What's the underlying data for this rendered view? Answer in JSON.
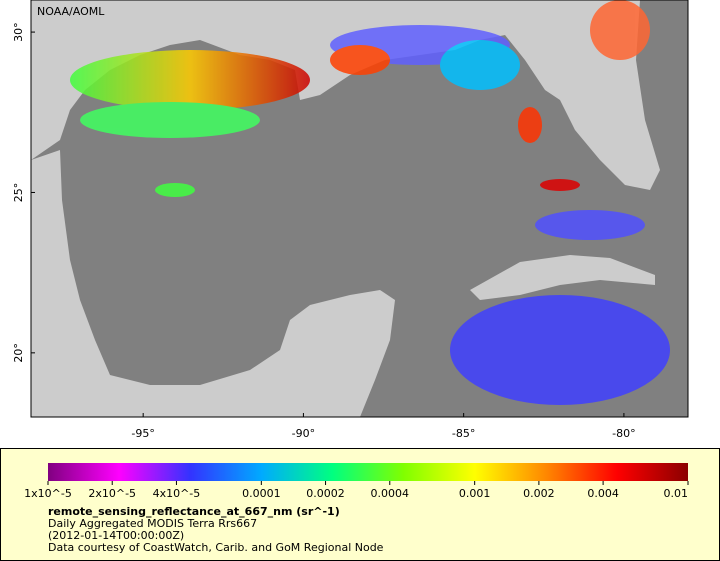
{
  "map": {
    "attribution": "NOAA/AOML",
    "lon_range": [
      -98.5,
      -78
    ],
    "lat_range": [
      18,
      31
    ],
    "lon_ticks": [
      {
        "value": -95,
        "label": "-95°"
      },
      {
        "value": -90,
        "label": "-90°"
      },
      {
        "value": -85,
        "label": "-85°"
      },
      {
        "value": -80,
        "label": "-80°"
      }
    ],
    "lat_ticks": [
      {
        "value": 20,
        "label": "20°"
      },
      {
        "value": 25,
        "label": "25°"
      },
      {
        "value": 30,
        "label": "30°"
      }
    ]
  },
  "legend": {
    "colorbar": {
      "log_scale": true,
      "range": [
        1e-05,
        0.01
      ],
      "colors": [
        "#800080",
        "#ff00ff",
        "#3333ff",
        "#00aaff",
        "#00ff80",
        "#80ff00",
        "#ffff00",
        "#ff8800",
        "#ff0000",
        "#8b0000"
      ],
      "ticks": [
        {
          "value": 1e-05,
          "label": "1x10^-5"
        },
        {
          "value": 2e-05,
          "label": "2x10^-5"
        },
        {
          "value": 4e-05,
          "label": "4x10^-5"
        },
        0.0001,
        0.0002,
        0.0004,
        0.001,
        0.002,
        0.004,
        0.01
      ]
    },
    "variable": "remote_sensing_reflectance_at_667_nm (sr^-1)",
    "dataset": "Daily Aggregated MODIS Terra Rrs667",
    "time": "(2012-01-14T00:00:00Z)",
    "credit": "Data courtesy of CoastWatch, Carib. and GoM Regional Node"
  }
}
